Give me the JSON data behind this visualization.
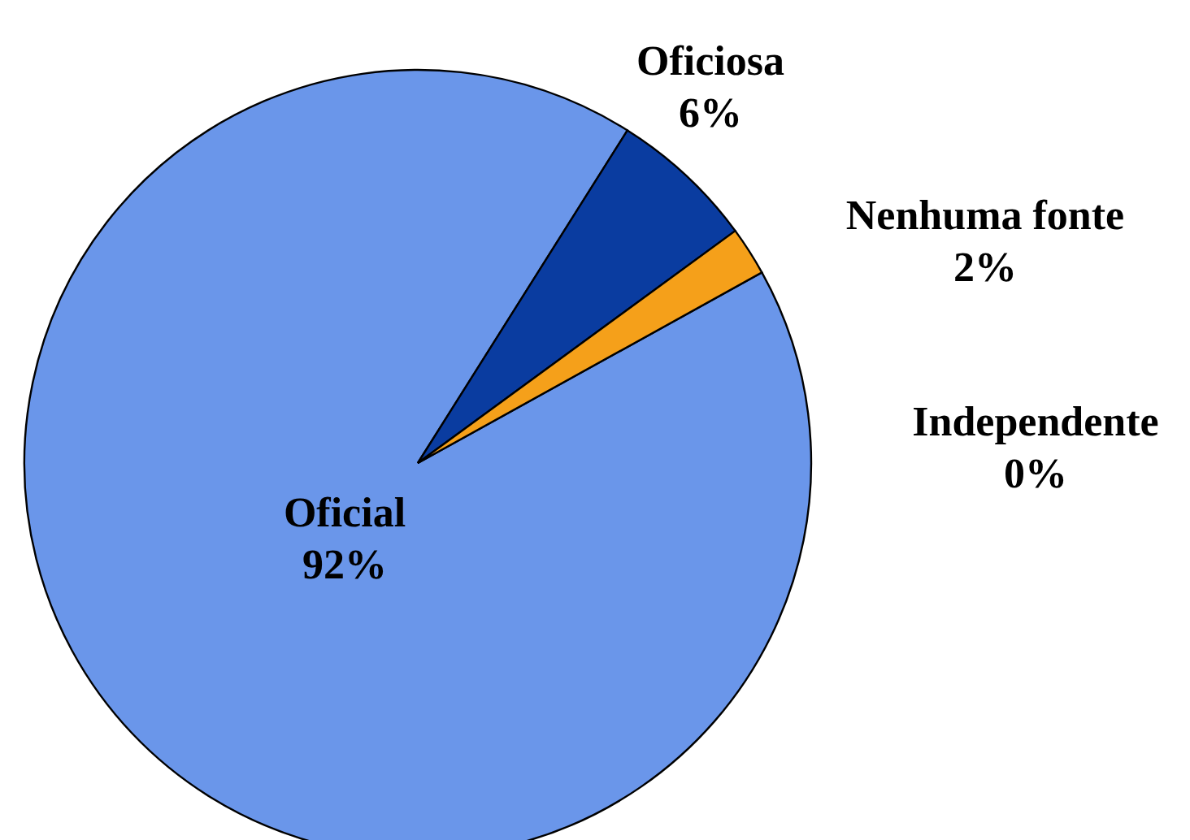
{
  "chart_data": {
    "type": "pie",
    "categories": [
      "Oficial",
      "Oficiosa",
      "Nenhuma fonte",
      "Independente"
    ],
    "values": [
      92,
      6,
      2,
      0
    ],
    "value_labels": [
      "92%",
      "6%",
      "2%",
      "0%"
    ],
    "colors": [
      "#6a96ea",
      "#0a3ca0",
      "#f5a01a",
      "#ffffff"
    ],
    "legend": false
  }
}
